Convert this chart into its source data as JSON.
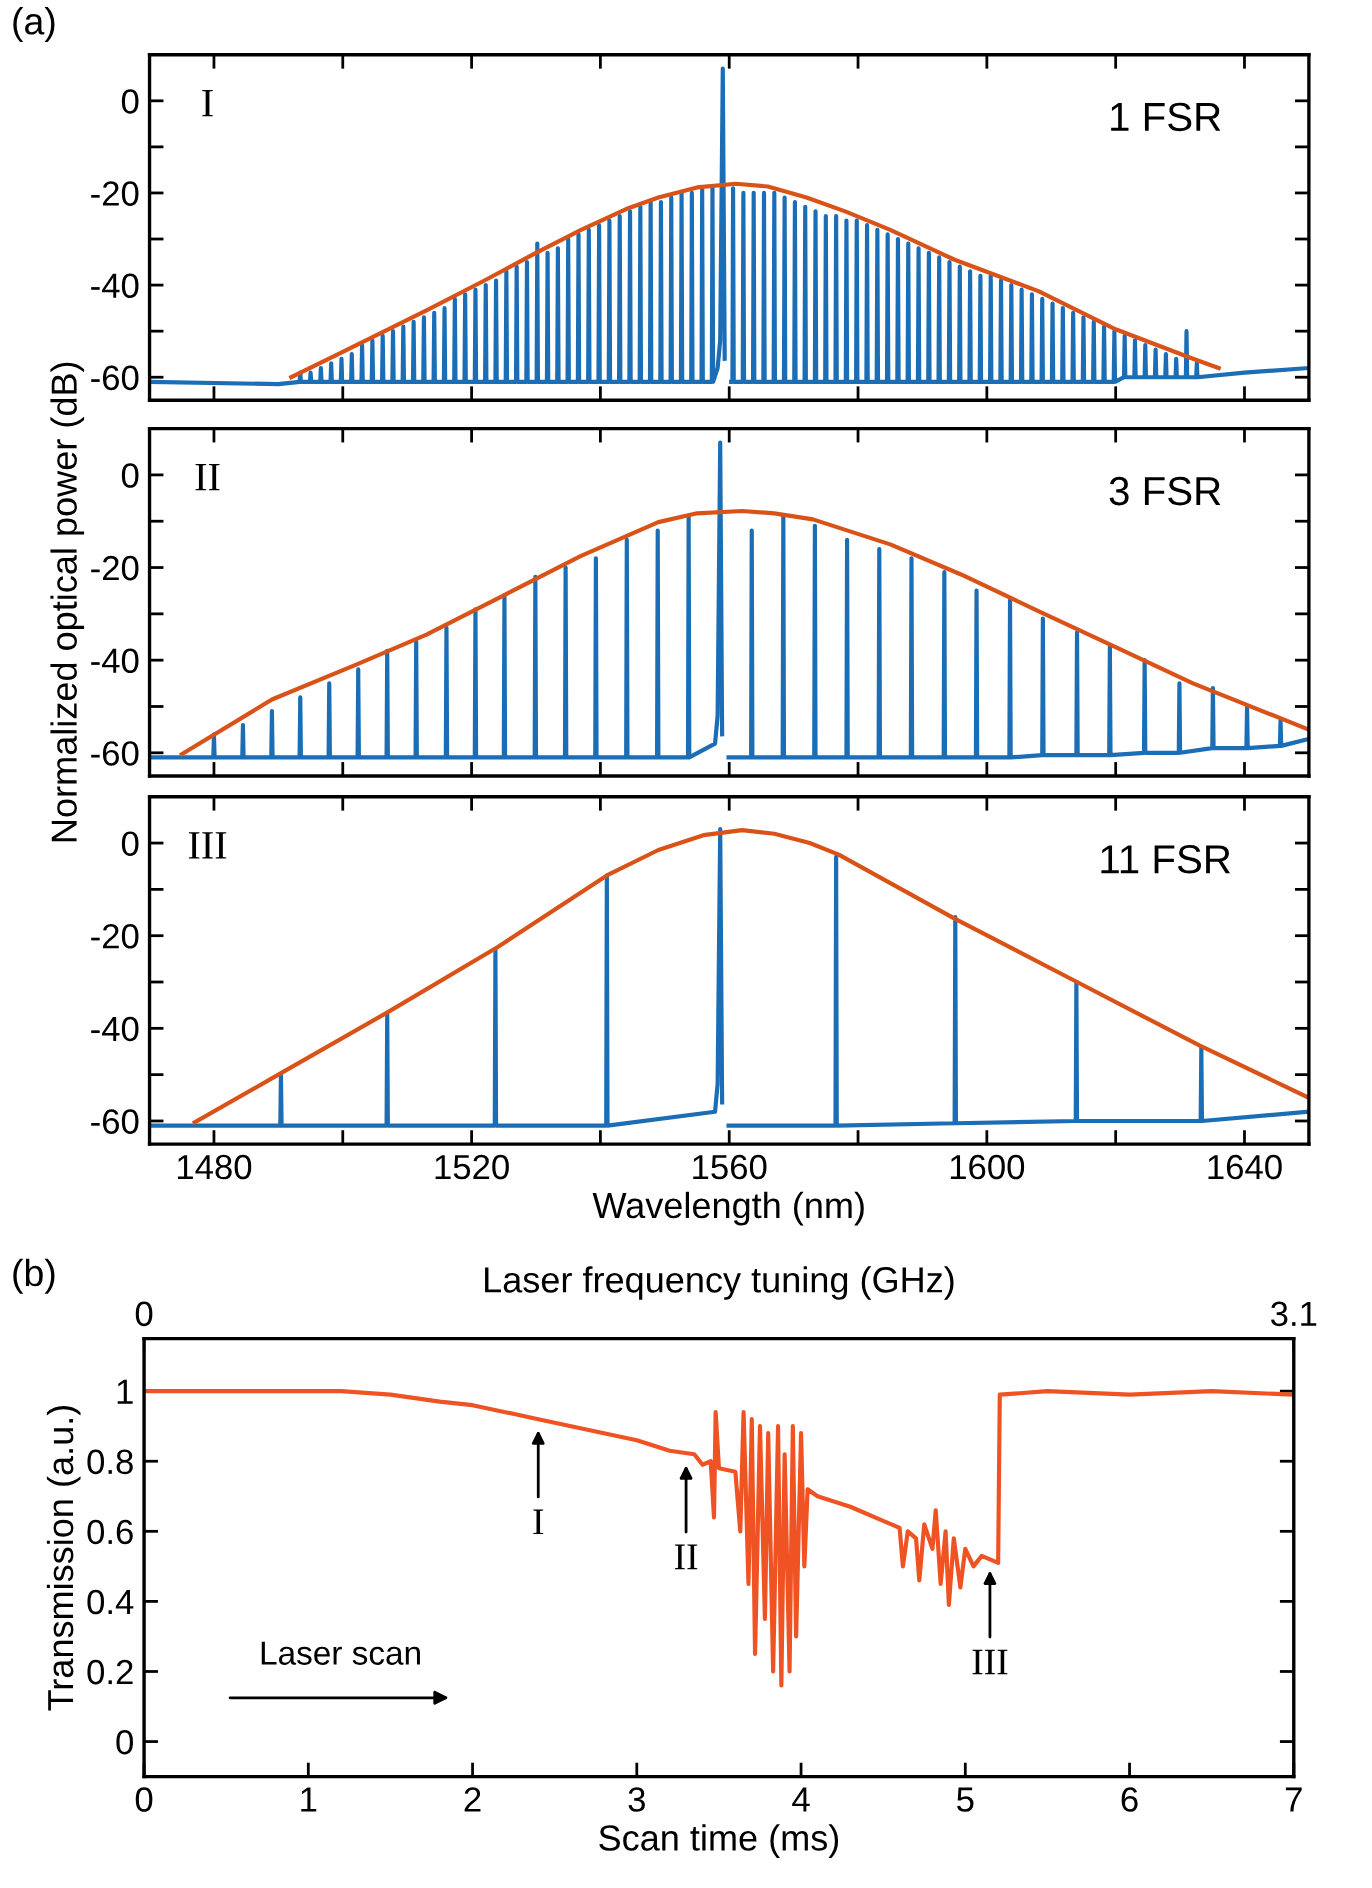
{
  "chart_data": [
    {
      "type": "line",
      "xlim": [
        1470,
        1650
      ],
      "ylim": [
        -65,
        10
      ],
      "tick_labels": "y",
      "xticks": [
        1480,
        {
          "value": 1500,
          "label": null
        },
        1520,
        {
          "value": 1540,
          "label": null
        },
        1560,
        {
          "value": 1580,
          "label": null
        },
        1600,
        {
          "value": 1620,
          "label": null
        },
        1640
      ],
      "yticks": [
        {
          "value": -60,
          "label": "-60"
        },
        {
          "value": -50,
          "label": null
        },
        {
          "value": -40,
          "label": "-40"
        },
        {
          "value": -30,
          "label": null
        },
        {
          "value": -20,
          "label": "-20"
        },
        {
          "value": -10,
          "label": null
        },
        0
      ],
      "annotations": [
        "(a)",
        "I",
        "1 FSR"
      ],
      "series": [
        {
          "color": "#1b6eb5",
          "x": [
            1470,
            1490,
            1493.3,
            1493.4,
            1493.5,
            1494.9,
            1495,
            1495.1,
            1496.5,
            1496.6,
            1496.7,
            1498.1,
            1498.2,
            1498.3,
            1499.7,
            1499.8,
            1499.9,
            1501.3,
            1501.4,
            1501.5,
            1502.9,
            1503,
            1503.1,
            1504.5,
            1504.6,
            1504.7,
            1506.1,
            1506.2,
            1506.3,
            1507.7,
            1507.8,
            1507.9,
            1509.3,
            1509.4,
            1509.5,
            1510.9,
            1511,
            1511.1,
            1512.5,
            1512.6,
            1512.7,
            1514.1,
            1514.2,
            1514.3,
            1515.7,
            1515.8,
            1515.9,
            1517.3,
            1517.4,
            1517.5,
            1518.9,
            1519,
            1519.1,
            1520.5,
            1520.6,
            1520.7,
            1522.1,
            1522.2,
            1522.3,
            1523.7,
            1523.8,
            1523.9,
            1525.3,
            1525.4,
            1525.5,
            1526.9,
            1527,
            1527.1,
            1528.5,
            1528.6,
            1528.7,
            1530.1,
            1530.2,
            1530.3,
            1531.7,
            1531.8,
            1531.9,
            1533.3,
            1533.4,
            1533.5,
            1534.9,
            1535,
            1535.1,
            1536.5,
            1536.6,
            1536.7,
            1538.1,
            1538.2,
            1538.3,
            1539.7,
            1539.8,
            1539.9,
            1541.3,
            1541.4,
            1541.5,
            1542.9,
            1543,
            1543.1,
            1544.5,
            1544.6,
            1544.7,
            1546.1,
            1546.2,
            1546.3,
            1547.7,
            1547.8,
            1547.9,
            1549.3,
            1549.4,
            1549.5,
            1550.9,
            1551,
            1551.1,
            1552.5,
            1552.6,
            1552.7,
            1554.1,
            1554.2,
            1554.3,
            1555.7,
            1555.8,
            1555.9,
            1557.3,
            1557.4,
            1557.5,
            1558.2,
            1558.6,
            1559,
            1559.3,
            1559.4,
            1560.1,
            1560.3,
            1560.5,
            1560.6,
            1560.7,
            1562.1,
            1562.2,
            1562.3,
            1563.7,
            1563.8,
            1563.9,
            1565.3,
            1565.4,
            1565.5,
            1566.9,
            1567,
            1567.1,
            1568.5,
            1568.6,
            1568.7,
            1570.1,
            1570.2,
            1570.3,
            1571.7,
            1571.8,
            1571.9,
            1573.3,
            1573.4,
            1573.5,
            1574.9,
            1575,
            1575.1,
            1576.5,
            1576.6,
            1576.7,
            1578.1,
            1578.2,
            1578.3,
            1579.7,
            1579.8,
            1579.9,
            1581.3,
            1581.4,
            1581.5,
            1582.9,
            1583,
            1583.1,
            1584.5,
            1584.6,
            1584.7,
            1586.1,
            1586.2,
            1586.3,
            1587.7,
            1587.8,
            1587.9,
            1589.3,
            1589.4,
            1589.5,
            1590.9,
            1591,
            1591.1,
            1592.5,
            1592.6,
            1592.7,
            1594.1,
            1594.2,
            1594.3,
            1595.7,
            1595.8,
            1595.9,
            1597.3,
            1597.4,
            1597.5,
            1598.9,
            1599,
            1599.1,
            1600.5,
            1600.6,
            1600.7,
            1602.1,
            1602.2,
            1602.3,
            1603.7,
            1603.8,
            1603.9,
            1605.3,
            1605.4,
            1605.5,
            1606.9,
            1607,
            1607.1,
            1608.5,
            1608.6,
            1608.7,
            1610.1,
            1610.2,
            1610.3,
            1611.7,
            1611.8,
            1611.9,
            1613.3,
            1613.4,
            1613.5,
            1614.9,
            1615,
            1615.1,
            1616.5,
            1616.6,
            1616.7,
            1618.1,
            1618.2,
            1618.3,
            1619.7,
            1619.8,
            1619.9,
            1621.3,
            1621.4,
            1621.5,
            1622.9,
            1623,
            1623.1,
            1624.5,
            1624.6,
            1624.7,
            1626.1,
            1626.2,
            1626.3,
            1627.7,
            1627.8,
            1627.9,
            1629.3,
            1629.4,
            1629.5,
            1630.9,
            1631,
            1631.1,
            1632.5,
            1632.6,
            1632.7,
            1640,
            1650
          ],
          "values": [
            -61,
            -61.5,
            -61,
            -59,
            -61,
            -61,
            -59,
            -61,
            -61,
            -58,
            -61,
            -61,
            -57,
            -61,
            -61,
            -56,
            -61,
            -61,
            -55,
            -61,
            -61,
            -53,
            -61,
            -61,
            -52,
            -61,
            -61,
            -51,
            -61,
            -61,
            -50,
            -61,
            -61,
            -49,
            -61,
            -61,
            -48,
            -61,
            -61,
            -47,
            -61,
            -61,
            -46,
            -61,
            -61,
            -45,
            -61,
            -61,
            -43,
            -61,
            -61,
            -42,
            -61,
            -61,
            -41,
            -61,
            -61,
            -40,
            -61,
            -61,
            -39,
            -61,
            -61,
            -37,
            -61,
            -61,
            -36,
            -61,
            -61,
            -35,
            -61,
            -61,
            -31,
            -61,
            -61,
            -33,
            -61,
            -61,
            -32,
            -61,
            -61,
            -30,
            -61,
            -61,
            -29,
            -61,
            -61,
            -28,
            -61,
            -61,
            -27,
            -61,
            -61,
            -26,
            -61,
            -61,
            -25,
            -61,
            -61,
            -24,
            -61,
            -61,
            -23,
            -61,
            -61,
            -22,
            -61,
            -61,
            -22,
            -61,
            -61,
            -21,
            -61,
            -61,
            -20,
            -61,
            -61,
            -20,
            -61,
            -61,
            -19,
            -61,
            -61,
            -19,
            -61,
            -58,
            -52,
            7,
            -56,
            null,
            null,
            -61,
            -61,
            -19,
            -61,
            -61,
            -20,
            -61,
            -61,
            -20,
            -61,
            -61,
            -20,
            -61,
            -61,
            -20,
            -61,
            -61,
            -21,
            -61,
            -61,
            -22,
            -61,
            -61,
            -23,
            -61,
            -61,
            -24,
            -61,
            -61,
            -25,
            -61,
            -61,
            -25,
            -61,
            -61,
            -26,
            -61,
            -61,
            -26,
            -61,
            -61,
            -27,
            -61,
            -61,
            -28,
            -61,
            -61,
            -29,
            -61,
            -61,
            -30,
            -61,
            -61,
            -31,
            -61,
            -61,
            -32,
            -61,
            -61,
            -33,
            -61,
            -61,
            -34,
            -61,
            -61,
            -35,
            -61,
            -61,
            -36,
            -61,
            -61,
            -37,
            -61,
            -61,
            -38,
            -61,
            -61,
            -38,
            -61,
            -61,
            -39,
            -61,
            -61,
            -40,
            -61,
            -61,
            -41,
            -61,
            -61,
            -42,
            -61,
            -61,
            -43,
            -61,
            -61,
            -44,
            -61,
            -61,
            -45,
            -61,
            -61,
            -46,
            -61,
            -61,
            -47,
            -61,
            -61,
            -48,
            -61,
            -61,
            -49,
            -61,
            -61,
            -50,
            -61,
            -60,
            -51,
            -60,
            -60,
            -52,
            -60,
            -60,
            -53,
            -60,
            -60,
            -54,
            -60,
            -60,
            -55,
            -60,
            -60,
            -56,
            -60,
            -60,
            -50,
            -60,
            -60,
            -57,
            -60,
            -59,
            -58
          ]
        },
        {
          "color": "#d95319",
          "x": [
            1492,
            1500,
            1513,
            1522,
            1530,
            1537,
            1544,
            1549,
            1555,
            1561,
            1566,
            1572,
            1578,
            1585,
            1595,
            1608,
            1620,
            1632,
            1636
          ],
          "values": [
            -60,
            -54.5,
            -45.5,
            -39,
            -33,
            -28,
            -23.5,
            -21,
            -18.8,
            -18,
            -18.6,
            -21,
            -24,
            -28,
            -34.5,
            -41.3,
            -49.6,
            -56,
            -58
          ]
        }
      ]
    },
    {
      "type": "line",
      "xlim": [
        1470,
        1650
      ],
      "ylim": [
        -65,
        10
      ],
      "tick_labels": "y",
      "ylabel": "Normalized optical power (dB)",
      "xticks": [
        1480,
        {
          "value": 1500,
          "label": null
        },
        1520,
        {
          "value": 1540,
          "label": null
        },
        1560,
        {
          "value": 1580,
          "label": null
        },
        1600,
        {
          "value": 1620,
          "label": null
        },
        1640
      ],
      "yticks": [
        {
          "value": -60,
          "label": "-60"
        },
        {
          "value": -50,
          "label": null
        },
        {
          "value": -40,
          "label": "-40"
        },
        {
          "value": -30,
          "label": null
        },
        {
          "value": -20,
          "label": "-20"
        },
        {
          "value": -10,
          "label": null
        },
        0
      ],
      "annotations": [
        "II",
        "3 FSR"
      ],
      "series": [
        {
          "color": "#1b6eb5",
          "x": [
            1470,
            1479.9,
            1480,
            1480.1,
            1484.4,
            1484.5,
            1484.6,
            1488.9,
            1489,
            1489.1,
            1493.3,
            1493.4,
            1493.5,
            1497.8,
            1497.9,
            1498,
            1502.3,
            1502.4,
            1502.5,
            1506.8,
            1506.9,
            1507,
            1511.3,
            1511.4,
            1511.5,
            1516,
            1516.1,
            1516.2,
            1520.5,
            1520.6,
            1520.7,
            1525,
            1525.1,
            1525.2,
            1529.8,
            1529.9,
            1530,
            1534.5,
            1534.6,
            1534.7,
            1539.2,
            1539.3,
            1539.4,
            1544,
            1544.1,
            1544.2,
            1548.8,
            1548.9,
            1549,
            1553.6,
            1553.7,
            1553.8,
            1557.8,
            1558.2,
            1558.6,
            1558.9,
            1559,
            1559.7,
            1559.9,
            1563.4,
            1563.5,
            1563.6,
            1568.3,
            1568.4,
            1568.5,
            1573.2,
            1573.3,
            1573.4,
            1578.2,
            1578.3,
            1578.4,
            1583.2,
            1583.3,
            1583.4,
            1588.2,
            1588.3,
            1588.4,
            1593.3,
            1593.4,
            1593.5,
            1598.3,
            1598.4,
            1598.5,
            1603.5,
            1603.6,
            1603.7,
            1608.6,
            1608.7,
            1608.8,
            1613.9,
            1614,
            1614.1,
            1619,
            1619.1,
            1619.2,
            1624.4,
            1624.5,
            1624.6,
            1629.8,
            1629.9,
            1630,
            1635,
            1635.1,
            1635.2,
            1640.3,
            1640.4,
            1640.5,
            1645.5,
            1645.6,
            1645.7,
            1650
          ],
          "values": [
            -61,
            -61,
            -56,
            -61,
            -61,
            -54,
            -61,
            -61,
            -51,
            -61,
            -61,
            -48,
            -61,
            -61,
            -45,
            -61,
            -61,
            -42,
            -61,
            -61,
            -38,
            -61,
            -61,
            -36,
            -61,
            -61,
            -33,
            -61,
            -61,
            -29,
            -61,
            -61,
            -26,
            -61,
            -61,
            -22,
            -61,
            -61,
            -20,
            -61,
            -61,
            -18,
            -61,
            -61,
            -14,
            -61,
            -61,
            -12,
            -61,
            -61,
            -9,
            -61,
            -58,
            -52,
            7,
            -56,
            null,
            null,
            -61,
            -61,
            -12,
            -61,
            -61,
            -9,
            -61,
            -61,
            -11,
            -61,
            -61,
            -14,
            -61,
            -61,
            -16,
            -61,
            -61,
            -18,
            -61,
            -61,
            -21,
            -61,
            -61,
            -25,
            -61,
            -61,
            -27,
            -61,
            -60.5,
            -31,
            -60.5,
            -60.5,
            -34,
            -60.5,
            -60.5,
            -37,
            -60.5,
            -60,
            -40,
            -60,
            -60,
            -45,
            -60,
            -59,
            -46,
            -59,
            -59,
            -50,
            -59,
            -58.5,
            -53,
            -58.5,
            -57
          ]
        },
        {
          "color": "#d95319",
          "x": [
            1475,
            1489,
            1502,
            1513,
            1525,
            1537,
            1549,
            1555,
            1562,
            1567,
            1573,
            1585,
            1596,
            1608,
            1620,
            1632,
            1650
          ],
          "values": [
            -60.3,
            -48.5,
            -41,
            -34.5,
            -26,
            -17.5,
            -10.2,
            -8.3,
            -7.8,
            -8.3,
            -9.6,
            -15,
            -21.5,
            -29.4,
            -37.2,
            -45,
            -55
          ]
        }
      ]
    },
    {
      "type": "line",
      "xlim": [
        1470,
        1650
      ],
      "ylim": [
        -65,
        10
      ],
      "xlabel": "Wavelength (nm)",
      "xticks": [
        1480,
        {
          "value": 1500,
          "label": null
        },
        1520,
        {
          "value": 1540,
          "label": null
        },
        1560,
        {
          "value": 1580,
          "label": null
        },
        1600,
        {
          "value": 1620,
          "label": null
        },
        1640
      ],
      "yticks": [
        {
          "value": -60,
          "label": "-60"
        },
        {
          "value": -50,
          "label": null
        },
        {
          "value": -40,
          "label": "-40"
        },
        {
          "value": -30,
          "label": null
        },
        {
          "value": -20,
          "label": "-20"
        },
        {
          "value": -10,
          "label": null
        },
        0
      ],
      "annotations": [
        "III",
        "11 FSR"
      ],
      "series": [
        {
          "color": "#1b6eb5",
          "x": [
            1470,
            1490.3,
            1490.4,
            1490.5,
            1506.8,
            1506.9,
            1507,
            1523.6,
            1523.7,
            1523.8,
            1540.9,
            1541,
            1541.1,
            1557.8,
            1558.2,
            1558.6,
            1558.9,
            1559,
            1559.7,
            1559.9,
            1576.5,
            1576.6,
            1576.7,
            1595,
            1595.1,
            1595.2,
            1613.8,
            1613.9,
            1614,
            1633.2,
            1633.3,
            1633.4,
            1650
          ],
          "values": [
            -61,
            -61,
            -50,
            -61,
            -61,
            -37,
            -61,
            -61,
            -23,
            -61,
            -61,
            -7,
            -61,
            -58,
            -52,
            3,
            -56,
            null,
            null,
            -61,
            -61,
            -3,
            -61,
            -60.5,
            -16,
            -60.5,
            -60,
            -30,
            -60,
            -60,
            -44,
            -60,
            -58
          ]
        },
        {
          "color": "#d95319",
          "x": [
            1477,
            1490,
            1507,
            1524,
            1541,
            1549,
            1556,
            1562,
            1567,
            1572.5,
            1577,
            1595,
            1614,
            1633,
            1650
          ],
          "values": [
            -60.3,
            -50,
            -36.5,
            -22.5,
            -7,
            -1.5,
            1.7,
            2.8,
            2,
            0,
            -2.5,
            -16.3,
            -30,
            -43.7,
            -55
          ]
        }
      ]
    },
    {
      "type": "line",
      "xlim": [
        0,
        7
      ],
      "ylim": [
        -0.1,
        1.15
      ],
      "xlabel": "Scan time (ms)",
      "ylabel": "Transmission (a.u.)",
      "x2label": "Laser frequency tuning (GHz)",
      "x2lim": [
        0,
        3.1
      ],
      "x2ticks": [
        0,
        3.1
      ],
      "xticks": [
        0,
        1,
        2,
        3,
        4,
        5,
        6,
        7
      ],
      "yticks": [
        0,
        0.2,
        0.4,
        0.6,
        0.8,
        1
      ],
      "annotations": [
        "(b)",
        {
          "text": "I",
          "x": 2.4,
          "y": 0.92
        },
        {
          "text": "II",
          "x": 3.3,
          "y": 0.82
        },
        {
          "text": "III",
          "x": 5.15,
          "y": 0.52
        },
        "Laser scan"
      ],
      "series": [
        {
          "color": "#ef5323",
          "x": [
            0,
            1.2,
            1.5,
            1.8,
            2,
            2.2,
            2.4,
            2.6,
            2.8,
            3,
            3.2,
            3.35,
            3.4,
            3.45,
            3.47,
            3.48,
            3.5,
            3.6,
            3.63,
            3.65,
            3.68,
            3.7,
            3.72,
            3.75,
            3.78,
            3.8,
            3.83,
            3.86,
            3.88,
            3.9,
            3.93,
            3.95,
            3.97,
            4,
            4.02,
            4.04,
            4.1,
            4.3,
            4.5,
            4.6,
            4.62,
            4.65,
            4.7,
            4.72,
            4.75,
            4.8,
            4.82,
            4.85,
            4.88,
            4.9,
            4.93,
            4.97,
            5,
            5.05,
            5.1,
            5.15,
            5.2,
            5.21,
            5.5,
            6,
            6.5,
            7
          ],
          "values": [
            1,
            1,
            0.99,
            0.97,
            0.96,
            0.94,
            0.92,
            0.9,
            0.88,
            0.86,
            0.83,
            0.82,
            0.79,
            0.8,
            0.64,
            0.94,
            0.78,
            0.77,
            0.6,
            0.94,
            0.45,
            0.92,
            0.25,
            0.9,
            0.35,
            0.88,
            0.2,
            0.9,
            0.16,
            0.82,
            0.2,
            0.9,
            0.3,
            0.88,
            0.5,
            0.72,
            0.7,
            0.67,
            0.63,
            0.61,
            0.5,
            0.6,
            0.58,
            0.46,
            0.62,
            0.55,
            0.66,
            0.45,
            0.6,
            0.39,
            0.58,
            0.44,
            0.55,
            0.5,
            0.53,
            0.52,
            0.51,
            0.99,
            1,
            0.99,
            1,
            0.99
          ]
        }
      ]
    }
  ]
}
